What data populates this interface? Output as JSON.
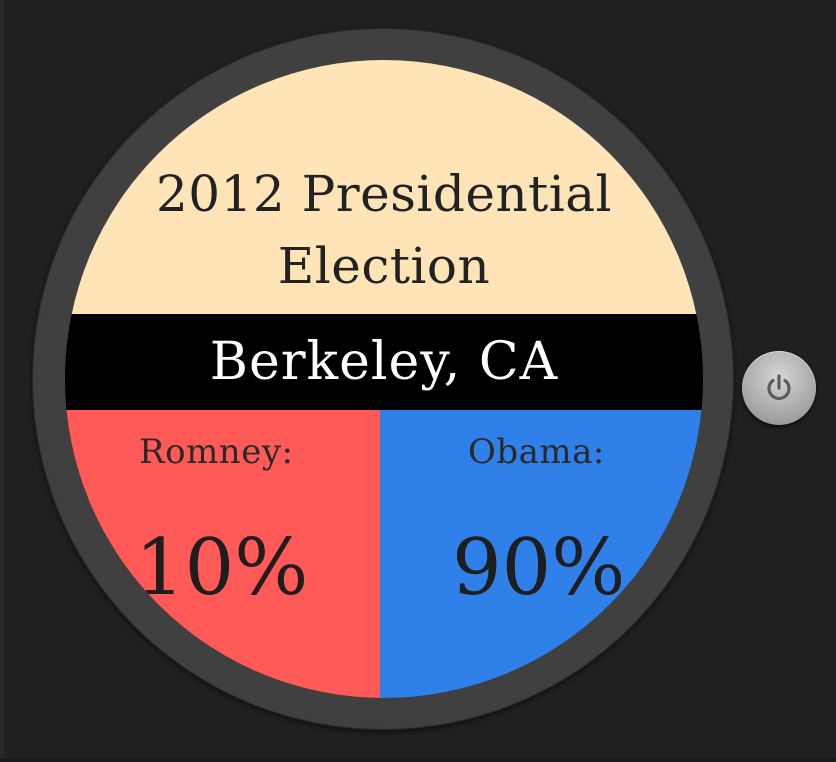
{
  "widget": {
    "title_line1": "2012 Presidential",
    "title_line2": "Election",
    "location": "Berkeley, CA",
    "candidates": [
      {
        "label": "Romney:",
        "percent": "10%",
        "color": "#ff5a57"
      },
      {
        "label": "Obama:",
        "percent": "90%",
        "color": "#3080ea"
      }
    ],
    "colors": {
      "title_bg": "#ffe4b8",
      "location_bg": "#000000",
      "bezel": "#3c3c3c"
    }
  },
  "controls": {
    "power_icon": "power-icon"
  }
}
